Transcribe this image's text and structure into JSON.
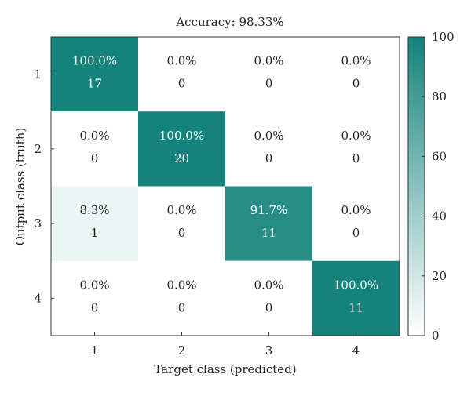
{
  "chart_data": {
    "type": "heatmap",
    "title": "Accuracy: 98.33%",
    "xlabel": "Target class (predicted)",
    "ylabel": "Output class (truth)",
    "x_categories": [
      "1",
      "2",
      "3",
      "4"
    ],
    "y_categories": [
      "1",
      "2",
      "3",
      "4"
    ],
    "percent_labels": [
      [
        "100.0%",
        "0.0%",
        "0.0%",
        "0.0%"
      ],
      [
        "0.0%",
        "100.0%",
        "0.0%",
        "0.0%"
      ],
      [
        "8.3%",
        "0.0%",
        "91.7%",
        "0.0%"
      ],
      [
        "0.0%",
        "0.0%",
        "0.0%",
        "100.0%"
      ]
    ],
    "percent_values": [
      [
        100.0,
        0.0,
        0.0,
        0.0
      ],
      [
        0.0,
        100.0,
        0.0,
        0.0
      ],
      [
        8.3,
        0.0,
        91.7,
        0.0
      ],
      [
        0.0,
        0.0,
        0.0,
        100.0
      ]
    ],
    "counts": [
      [
        17,
        0,
        0,
        0
      ],
      [
        0,
        20,
        0,
        0
      ],
      [
        1,
        0,
        11,
        0
      ],
      [
        0,
        0,
        0,
        11
      ]
    ],
    "colorbar": {
      "min": 0,
      "max": 100,
      "ticks": [
        0,
        20,
        40,
        60,
        80,
        100
      ],
      "color_low": "#ffffff",
      "color_high": "#13837b"
    },
    "text_color_dark": "#222222",
    "text_color_light": "#ffffff"
  }
}
